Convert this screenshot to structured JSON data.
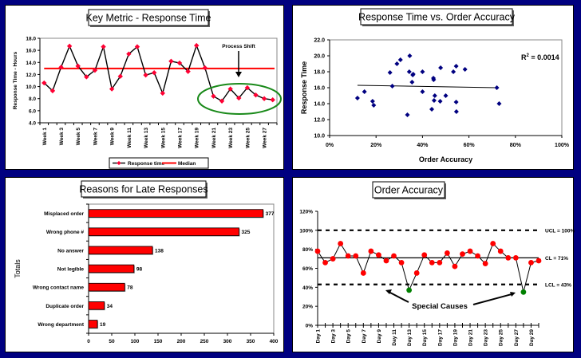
{
  "chart_data": [
    {
      "id": "key-metric",
      "type": "line",
      "title": "Key Metric - Response Time",
      "xlabel": "",
      "ylabel": "Response Time - Hours",
      "ylim": [
        4.0,
        18.0
      ],
      "yticks": [
        "4.0",
        "6.0",
        "8.0",
        "10.0",
        "12.0",
        "14.0",
        "16.0",
        "18.0"
      ],
      "categories": [
        "Week 1",
        "Week 2",
        "Week 3",
        "Week 4",
        "Week 5",
        "Week 6",
        "Week 7",
        "Week 8",
        "Week 9",
        "Week 10",
        "Week 11",
        "Week 12",
        "Week 13",
        "Week 14",
        "Week 15",
        "Week 16",
        "Week 17",
        "Week 18",
        "Week 19",
        "Week 20",
        "Week 21",
        "Week 22",
        "Week 23",
        "Week 24",
        "Week 25",
        "Week 26",
        "Week 27",
        "Week 28"
      ],
      "xtick_labels": [
        "Week 1",
        "Week 3",
        "Week 5",
        "Week 7",
        "Week 9",
        "Week 11",
        "Week 13",
        "Week 15",
        "Week 17",
        "Week 19",
        "Week 21",
        "Week 23",
        "Week 25",
        "Week 27"
      ],
      "series": [
        {
          "name": "Response time",
          "color": "#000000",
          "marker_color": "#ff0033",
          "values": [
            10.6,
            9.3,
            13.2,
            16.7,
            13.4,
            11.6,
            12.7,
            16.6,
            9.6,
            11.7,
            15.4,
            16.6,
            11.9,
            12.3,
            8.9,
            14.2,
            13.9,
            12.5,
            16.8,
            13.1,
            8.4,
            7.6,
            9.6,
            8.1,
            9.8,
            8.6,
            8.0,
            7.8
          ]
        },
        {
          "name": "Median",
          "color": "#ff0000",
          "values": [
            13.0
          ]
        }
      ],
      "annotation": {
        "text": "Process Shift",
        "ellipse_color": "#1a8a1a"
      },
      "legend": "bottom",
      "grid": false
    },
    {
      "id": "scatter",
      "type": "scatter",
      "title": "Response Time vs. Order Accuracy",
      "xlabel": "Order Accuracy",
      "ylabel": "Response Time",
      "xlim": [
        0,
        1.0
      ],
      "ylim": [
        10.0,
        22.0
      ],
      "xticks": [
        "0%",
        "20%",
        "40%",
        "60%",
        "80%",
        "100%"
      ],
      "yticks": [
        "10.0",
        "12.0",
        "14.0",
        "16.0",
        "18.0",
        "20.0",
        "22.0"
      ],
      "marker_color": "#000080",
      "x": [
        0.12,
        0.15,
        0.185,
        0.19,
        0.26,
        0.27,
        0.29,
        0.305,
        0.335,
        0.343,
        0.345,
        0.355,
        0.358,
        0.36,
        0.4,
        0.4,
        0.44,
        0.447,
        0.448,
        0.45,
        0.453,
        0.476,
        0.478,
        0.5,
        0.533,
        0.545,
        0.545,
        0.546,
        0.583,
        0.72,
        0.73
      ],
      "y": [
        14.7,
        15.5,
        14.3,
        13.8,
        17.9,
        16.2,
        19.0,
        19.5,
        12.6,
        18.0,
        20.0,
        16.7,
        17.6,
        17.7,
        15.5,
        18.0,
        13.3,
        17.2,
        17.0,
        14.4,
        15.0,
        14.3,
        18.5,
        15.0,
        18.0,
        18.7,
        14.2,
        13.0,
        18.3,
        16.0,
        14.0
      ],
      "trendline": {
        "x": [
          0.12,
          0.72
        ],
        "y": [
          16.3,
          16.0
        ]
      },
      "annotation": {
        "text": "R",
        "sup": "2",
        "rest": " = 0.0014"
      },
      "grid": false
    },
    {
      "id": "reasons",
      "type": "bar",
      "orientation": "horizontal",
      "title": "Reasons for Late Responses",
      "xlabel": "",
      "ylabel": "Totals",
      "xlim": [
        0,
        400
      ],
      "xticks": [
        "0",
        "50",
        "100",
        "150",
        "200",
        "250",
        "300",
        "350",
        "400"
      ],
      "categories": [
        "Misplaced order",
        "Wrong phone #",
        "No answer",
        "Not legible",
        "Wrong contact name",
        "Duplicate order",
        "Wrong department"
      ],
      "values": [
        377,
        325,
        138,
        98,
        78,
        34,
        19
      ],
      "data_labels": [
        "377",
        "325",
        "138",
        "98",
        "78",
        "34",
        "19"
      ],
      "bar_color": "#ff0000",
      "grid": false
    },
    {
      "id": "order-accuracy",
      "type": "line",
      "title": "Order Accuracy",
      "xlabel": "",
      "ylabel": "",
      "ylim": [
        0,
        1.2
      ],
      "yticks": [
        "0%",
        "20%",
        "40%",
        "60%",
        "80%",
        "100%",
        "120%"
      ],
      "categories": [
        "Day 1",
        "Day 2",
        "Day 3",
        "Day 4",
        "Day 5",
        "Day 6",
        "Day 7",
        "Day 8",
        "Day 9",
        "Day 10",
        "Day 11",
        "Day 12",
        "Day 13",
        "Day 14",
        "Day 15",
        "Day 16",
        "Day 17",
        "Day 18",
        "Day 19",
        "Day 20",
        "Day 21",
        "Day 22",
        "Day 23",
        "Day 24",
        "Day 25",
        "Day 26",
        "Day 27",
        "Day 28",
        "Day 29",
        "Day 30"
      ],
      "xtick_labels": [
        "Day 1",
        "Day 3",
        "Day 5",
        "Day 7",
        "Day 9",
        "Day 11",
        "Day 13",
        "Day 15",
        "Day 17",
        "Day 19",
        "Day 21",
        "Day 23",
        "Day 25",
        "Day 27",
        "Day 29"
      ],
      "values": [
        0.78,
        0.66,
        0.7,
        0.86,
        0.73,
        0.73,
        0.55,
        0.78,
        0.74,
        0.68,
        0.73,
        0.66,
        0.37,
        0.55,
        0.74,
        0.66,
        0.66,
        0.76,
        0.62,
        0.75,
        0.78,
        0.73,
        0.65,
        0.86,
        0.78,
        0.71,
        0.71,
        0.35,
        0.66,
        0.68
      ],
      "special_cause_indices": [
        12,
        27
      ],
      "point_color": "#ff0000",
      "special_color": "#008000",
      "control_lines": [
        {
          "name": "UCL",
          "value": 1.0,
          "label": "UCL = 100%",
          "style": "dashed"
        },
        {
          "name": "CL",
          "value": 0.71,
          "label": "CL = 71%",
          "style": "solid"
        },
        {
          "name": "LCL",
          "value": 0.43,
          "label": "LCL = 43%",
          "style": "dashed"
        }
      ],
      "annotation": {
        "text": "Special Causes"
      },
      "grid": false
    }
  ]
}
